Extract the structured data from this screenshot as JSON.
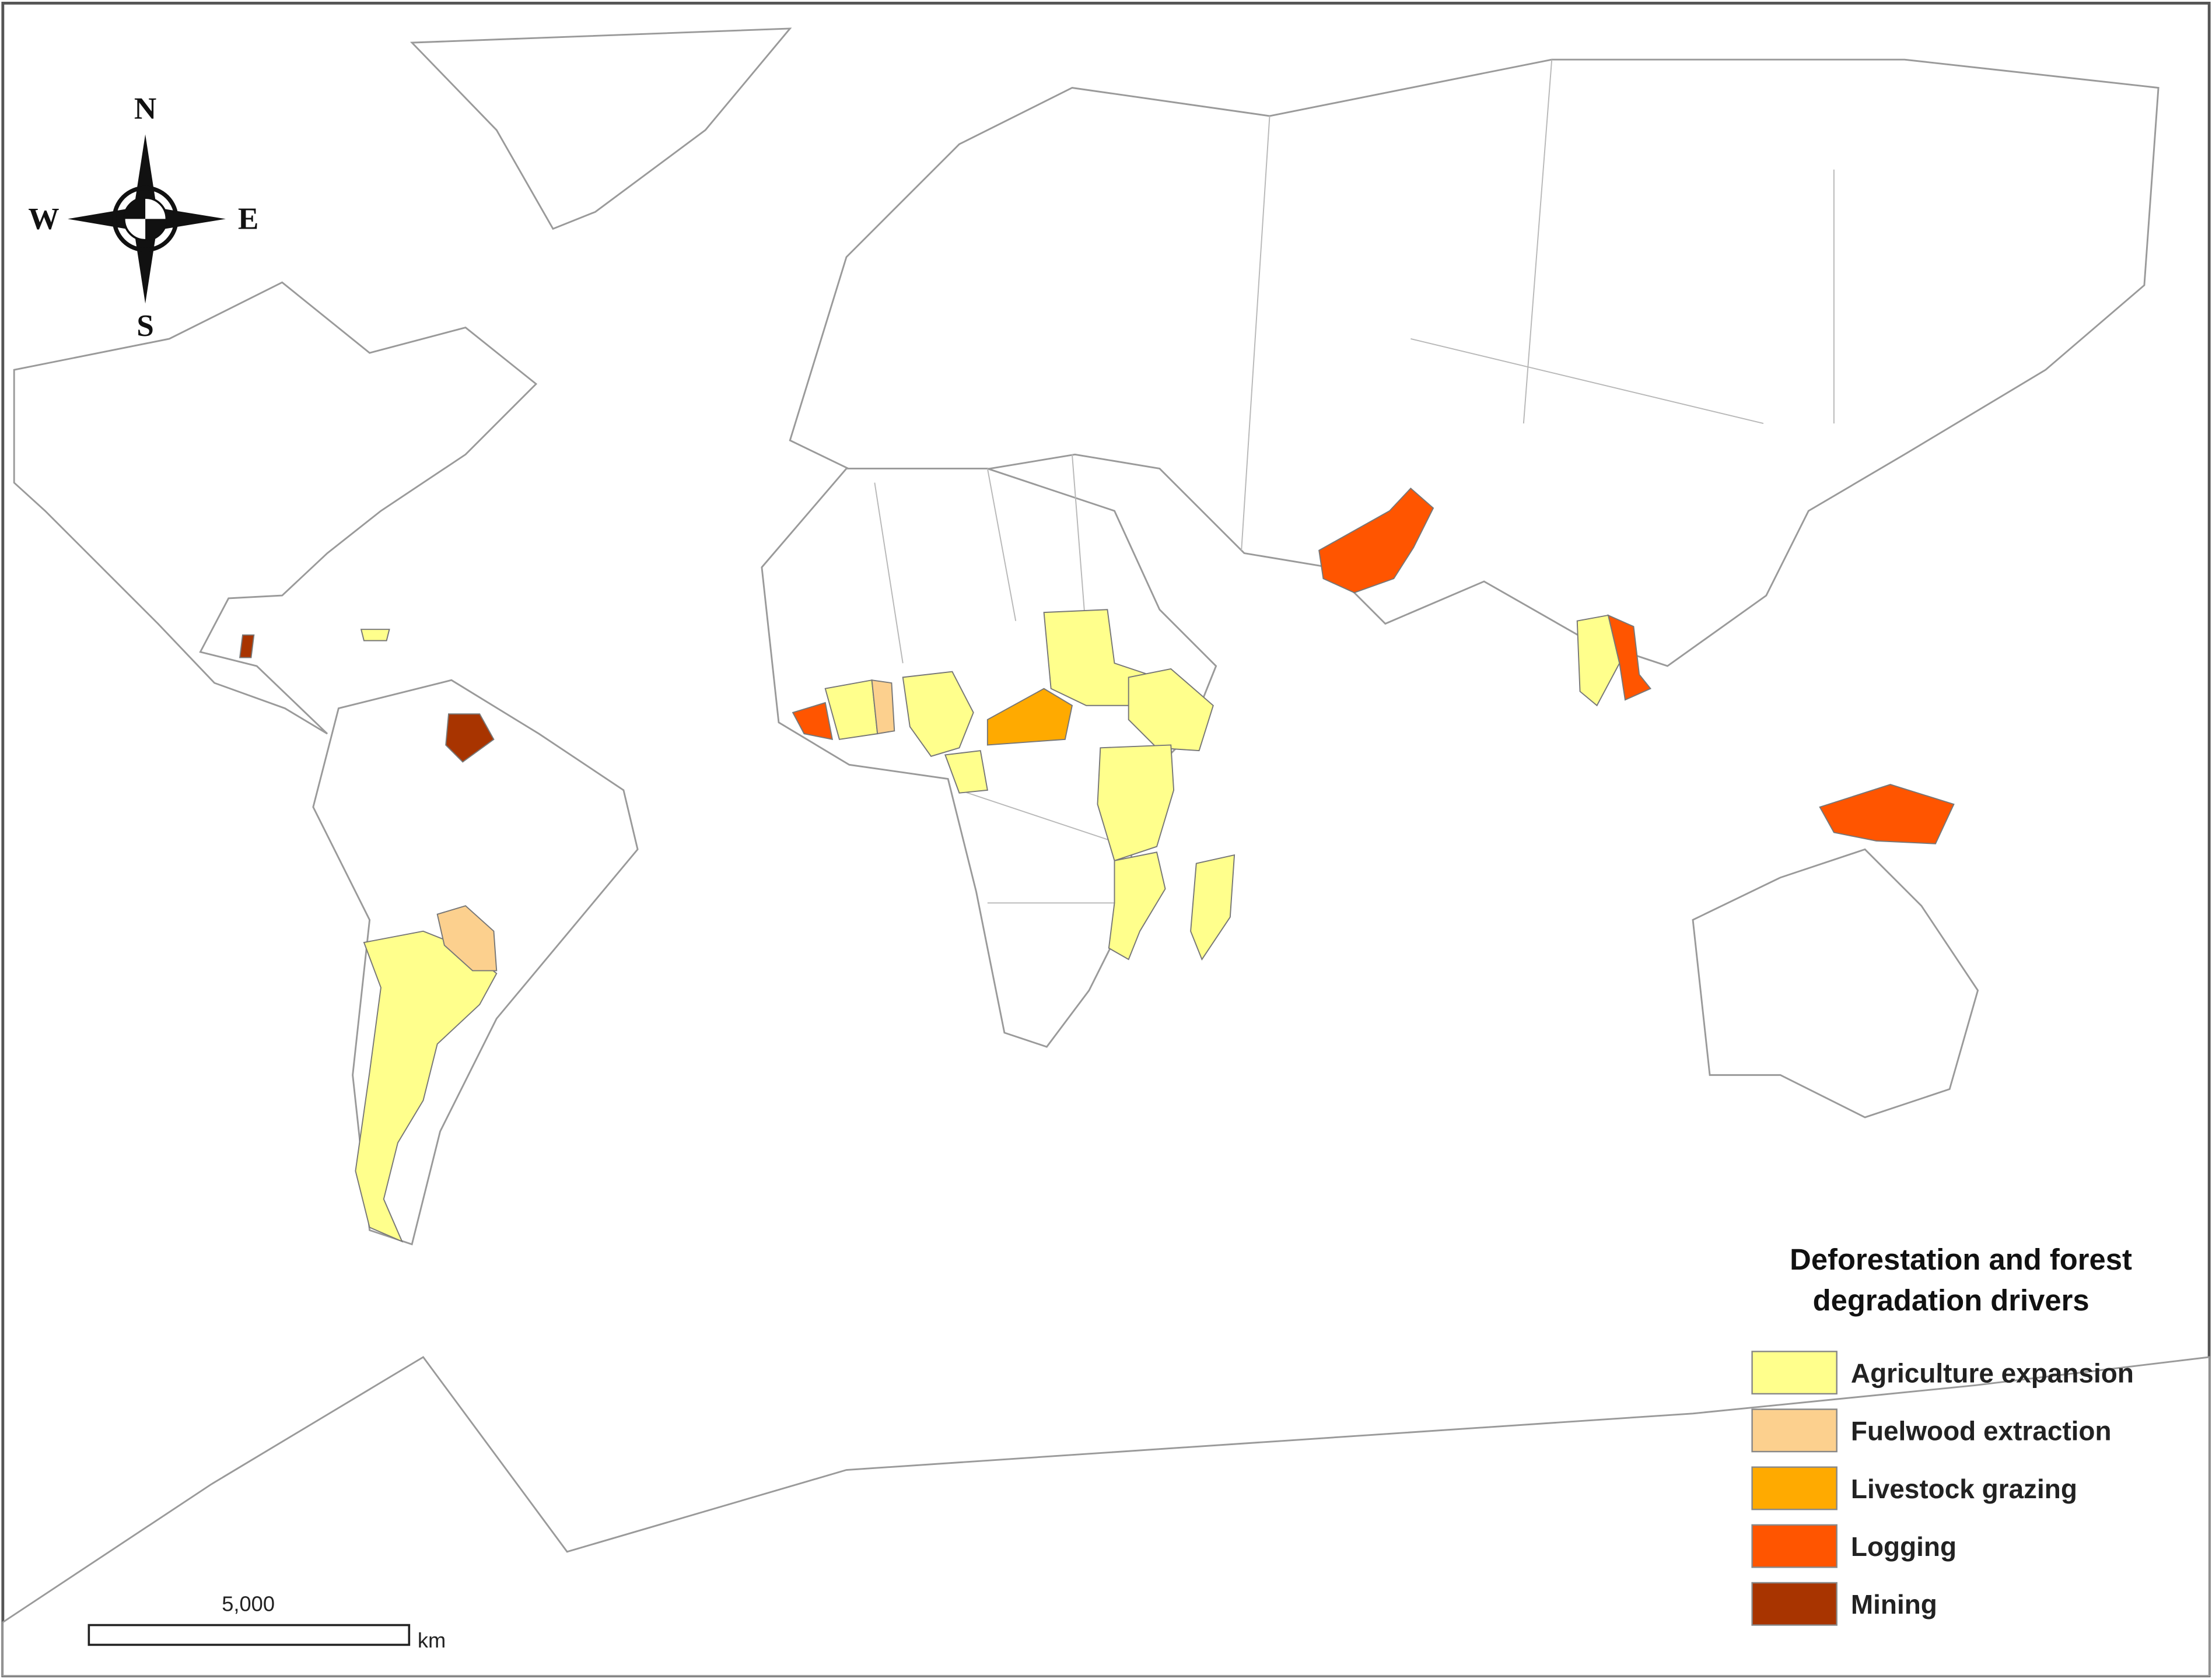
{
  "compass": {
    "north": "N",
    "south": "S",
    "east": "E",
    "west": "W"
  },
  "scale_bar": {
    "label": "5,000",
    "unit": "km"
  },
  "legend": {
    "title": [
      "Deforestation and forest",
      "degradation drivers"
    ],
    "items": [
      {
        "label": "Agriculture expansion",
        "color": "#ffff8c"
      },
      {
        "label": "Fuelwood extraction",
        "color": "#fcd08e"
      },
      {
        "label": "Livestock grazing",
        "color": "#ffaa00"
      },
      {
        "label": "Logging",
        "color": "#ff5500"
      },
      {
        "label": "Mining",
        "color": "#a83400"
      }
    ]
  }
}
